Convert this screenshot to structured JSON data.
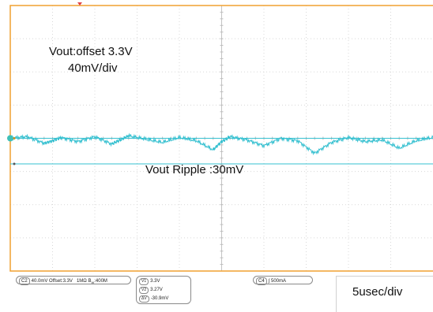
{
  "annotations": {
    "offset": "Vout:offset 3.3V",
    "scale": "40mV/div",
    "ripple": "Vout Ripple :30mV"
  },
  "status_bar": {
    "channel": {
      "id": "C2",
      "setting": "40.0mV  Offset:3.3V",
      "coupling": "1MΩ",
      "bw_prefix": "B",
      "bw_sub": "W",
      "bw_value": ":400M"
    },
    "cursors": [
      {
        "name": "V1",
        "value": "3.3V"
      },
      {
        "name": "V2",
        "value": "3.27V"
      },
      {
        "name": "ΔV",
        "value": "-30.9mV"
      }
    ],
    "trigger": {
      "id": "C4",
      "slope": "∫",
      "level": "500mA"
    },
    "timebase": "5usec/div"
  },
  "colors": {
    "grid_border": "#f0a030",
    "grid_line": "#d8d8d8",
    "trace": "#35c0d0",
    "marker": "#3ec0b8",
    "trigger_marker": "#e04040"
  },
  "chart_data": {
    "type": "line",
    "title": "",
    "xlabel": "",
    "ylabel": "",
    "x_divisions": 10,
    "y_divisions": 8,
    "time_per_div_us": 5,
    "volts_per_div_mV": 40,
    "offset_V": 3.3,
    "xlim_us": [
      0,
      50
    ],
    "ylim_mV": [
      -160,
      160
    ],
    "grid": true,
    "series": [
      {
        "x_us": [
          0,
          2,
          4,
          5,
          6,
          8,
          10,
          12,
          13,
          14,
          16,
          18,
          20,
          22,
          24,
          25,
          26,
          28,
          30,
          32,
          34,
          36,
          38,
          40,
          42,
          44,
          46,
          48,
          50
        ],
        "y_mV": [
          0,
          2,
          -6,
          -3,
          1,
          -4,
          2,
          -7,
          -2,
          3,
          -1,
          -5,
          1,
          -3,
          -14,
          -4,
          2,
          -2,
          -9,
          0,
          -3,
          -18,
          -5,
          1,
          -4,
          -2,
          -12,
          -3,
          1
        ]
      }
    ],
    "cursor_levels_mV": [
      0,
      -30.9
    ]
  }
}
